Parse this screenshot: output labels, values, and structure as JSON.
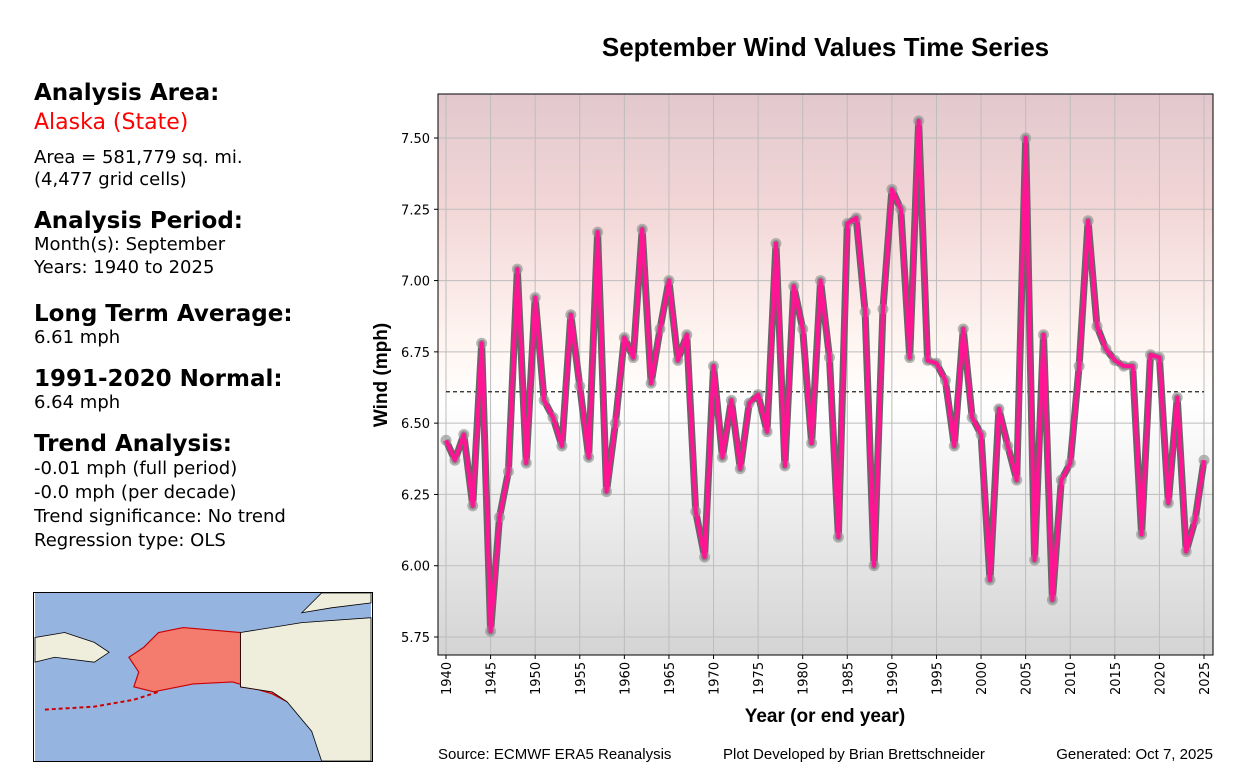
{
  "panel": {
    "area_heading": "Analysis Area:",
    "area_name": "Alaska (State)",
    "area_size": "Area = 581,779 sq. mi.",
    "grid_cells": "(4,477 grid cells)",
    "period_heading": "Analysis Period:",
    "months": "Month(s): September",
    "years": "Years: 1940 to 2025",
    "lta_heading": "Long Term Average:",
    "lta_value": "6.61 mph",
    "normal_heading": "1991-2020 Normal:",
    "normal_value": "6.64 mph",
    "trend_heading": "Trend Analysis:",
    "trend_full": "-0.01 mph (full period)",
    "trend_decade": "-0.0 mph (per decade)",
    "trend_sig": "Trend significance: No trend",
    "regression": "Regression type: OLS",
    "area_color": "#ff0000"
  },
  "footer": {
    "source": "Source: ECMWF ERA5 Reanalysis",
    "developer": "Plot Developed by Brian Brettschneider",
    "generated": "Generated: Oct 7, 2025"
  },
  "chart_data": {
    "type": "line",
    "title": "September Wind Values Time Series",
    "xlabel": "Year (or end year)",
    "ylabel": "Wind (mph)",
    "xlim": [
      1939,
      2026
    ],
    "ylim": [
      5.69,
      7.65
    ],
    "yticks": [
      5.75,
      6.0,
      6.25,
      6.5,
      6.75,
      7.0,
      7.25,
      7.5
    ],
    "ytick_labels": [
      "5.75",
      "6.00",
      "6.25",
      "6.50",
      "6.75",
      "7.00",
      "7.25",
      "7.50"
    ],
    "xticks": [
      1940,
      1945,
      1950,
      1955,
      1960,
      1965,
      1970,
      1975,
      1980,
      1985,
      1990,
      1995,
      2000,
      2005,
      2010,
      2015,
      2020,
      2025
    ],
    "grid": true,
    "average_line": 6.61,
    "line_color": "#ff1493",
    "x": [
      1940,
      1941,
      1942,
      1943,
      1944,
      1945,
      1946,
      1947,
      1948,
      1949,
      1950,
      1951,
      1952,
      1953,
      1954,
      1955,
      1956,
      1957,
      1958,
      1959,
      1960,
      1961,
      1962,
      1963,
      1964,
      1965,
      1966,
      1967,
      1968,
      1969,
      1970,
      1971,
      1972,
      1973,
      1974,
      1975,
      1976,
      1977,
      1978,
      1979,
      1980,
      1981,
      1982,
      1983,
      1984,
      1985,
      1986,
      1987,
      1988,
      1989,
      1990,
      1991,
      1992,
      1993,
      1994,
      1995,
      1996,
      1997,
      1998,
      1999,
      2000,
      2001,
      2002,
      2003,
      2004,
      2005,
      2006,
      2007,
      2008,
      2009,
      2010,
      2011,
      2012,
      2013,
      2014,
      2015,
      2016,
      2017,
      2018,
      2019,
      2020,
      2021,
      2022,
      2023,
      2024,
      2025
    ],
    "values": [
      6.44,
      6.37,
      6.46,
      6.21,
      6.78,
      5.77,
      6.17,
      6.33,
      7.04,
      6.36,
      6.94,
      6.58,
      6.52,
      6.42,
      6.88,
      6.63,
      6.38,
      7.17,
      6.26,
      6.5,
      6.8,
      6.73,
      7.18,
      6.64,
      6.83,
      7.0,
      6.72,
      6.81,
      6.19,
      6.03,
      6.7,
      6.38,
      6.58,
      6.34,
      6.57,
      6.6,
      6.47,
      7.13,
      6.35,
      6.98,
      6.83,
      6.43,
      7.0,
      6.73,
      6.1,
      7.2,
      7.22,
      6.89,
      6.0,
      6.9,
      7.32,
      7.25,
      6.73,
      7.56,
      6.72,
      6.71,
      6.65,
      6.42,
      6.83,
      6.52,
      6.46,
      5.95,
      6.55,
      6.42,
      6.3,
      7.5,
      6.02,
      6.81,
      5.88,
      6.3,
      6.36,
      6.7,
      7.21,
      6.84,
      6.76,
      6.72,
      6.7,
      6.7,
      6.11,
      6.74,
      6.73,
      6.22,
      6.59,
      6.05,
      6.16,
      6.37
    ]
  }
}
